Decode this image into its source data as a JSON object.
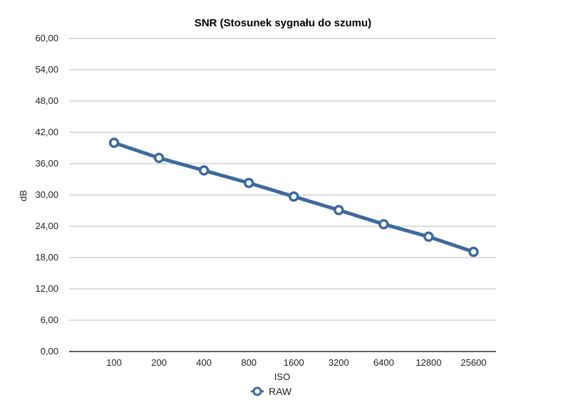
{
  "chart_data": {
    "type": "line",
    "title": "SNR (Stosunek sygnału do szumu)",
    "xlabel": "ISO",
    "ylabel": "dB",
    "categories": [
      "100",
      "200",
      "400",
      "800",
      "1600",
      "3200",
      "6400",
      "12800",
      "25600"
    ],
    "ylim": [
      0,
      60
    ],
    "yticks": [
      "0,00",
      "6,00",
      "12,00",
      "18,00",
      "24,00",
      "30,00",
      "36,00",
      "42,00",
      "48,00",
      "54,00",
      "60,00"
    ],
    "series": [
      {
        "name": "RAW",
        "color": "#3d6a9e",
        "values": [
          40.0,
          37.1,
          34.7,
          32.3,
          29.7,
          27.1,
          24.4,
          22.0,
          19.1
        ]
      }
    ],
    "grid": true,
    "legend": "bottom-center"
  }
}
